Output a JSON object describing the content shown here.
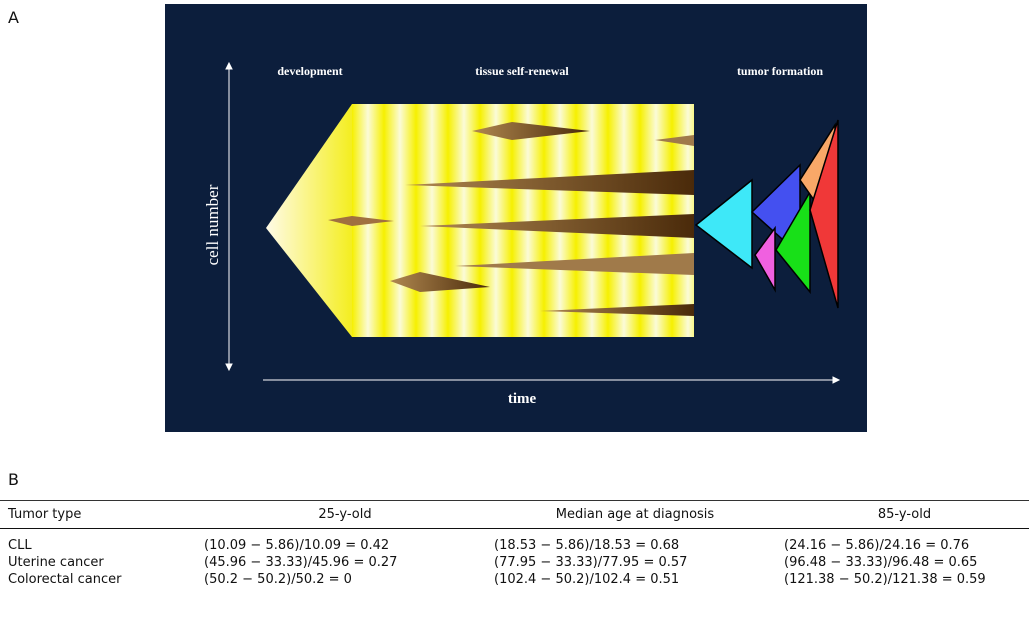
{
  "panel_a": {
    "label": "A",
    "development": "development",
    "renewal": "tissue self-renewal",
    "tumor": "tumor formation",
    "y_axis": "cell number",
    "x_axis": "time"
  },
  "panel_b": {
    "label": "B",
    "table": {
      "header": [
        "Tumor type",
        "25-y-old",
        "Median age at diagnosis",
        "85-y-old"
      ],
      "rows": [
        [
          "CLL",
          "(10.09 − 5.86)/10.09 = 0.42",
          "(18.53 − 5.86)/18.53 = 0.68",
          "(24.16 − 5.86)/24.16 = 0.76"
        ],
        [
          "Uterine cancer",
          "(45.96 − 33.33)/45.96 = 0.27",
          "(77.95 − 33.33)/77.95 = 0.57",
          "(96.48 − 33.33)/96.48 = 0.65"
        ],
        [
          "Colorectal cancer",
          "(50.2 − 50.2)/50.2 = 0",
          "(102.4 − 50.2)/102.4 = 0.51",
          "(121.38 − 50.2)/121.38 = 0.59"
        ]
      ]
    }
  }
}
